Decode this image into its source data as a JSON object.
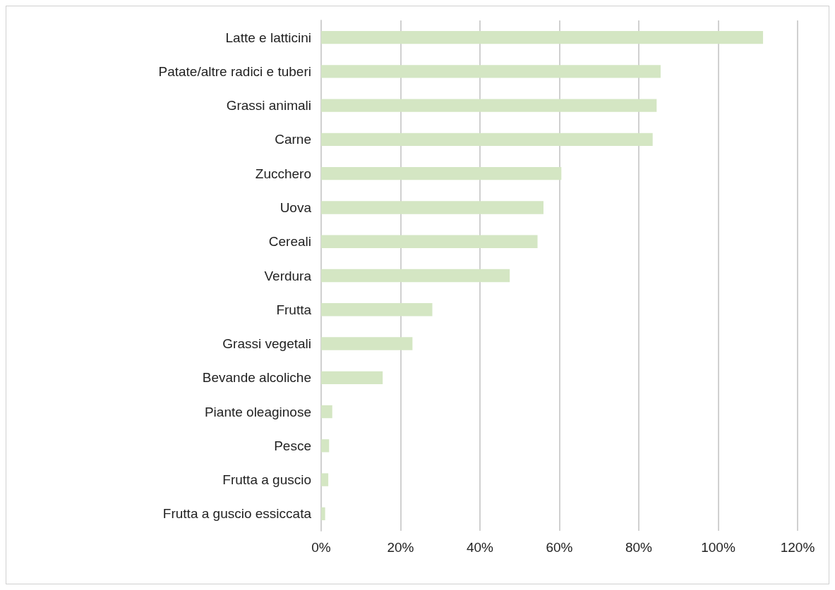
{
  "chart_data": {
    "type": "bar",
    "orientation": "horizontal",
    "categories": [
      "Latte e latticini",
      "Patate/altre radici e tuberi",
      "Grassi animali",
      "Carne",
      "Zucchero",
      "Uova",
      "Cereali",
      "Verdura",
      "Frutta",
      "Grassi vegetali",
      "Bevande alcoliche",
      "Piante oleaginose",
      "Pesce",
      "Frutta a guscio",
      "Frutta a guscio essiccata"
    ],
    "values": [
      111.3,
      85.5,
      84.5,
      83.5,
      60.5,
      56,
      54.5,
      47.5,
      28,
      23,
      15.5,
      2.8,
      2,
      1.8,
      1
    ],
    "color": "#d4e6c3",
    "xlim": [
      0,
      120
    ],
    "xticks": [
      {
        "value": 0,
        "label": "0%"
      },
      {
        "value": 20,
        "label": "20%"
      },
      {
        "value": 40,
        "label": "40%"
      },
      {
        "value": 60,
        "label": "60%"
      },
      {
        "value": 80,
        "label": "80%"
      },
      {
        "value": 100,
        "label": "100%"
      },
      {
        "value": 120,
        "label": "120%"
      }
    ],
    "grid": "x"
  }
}
